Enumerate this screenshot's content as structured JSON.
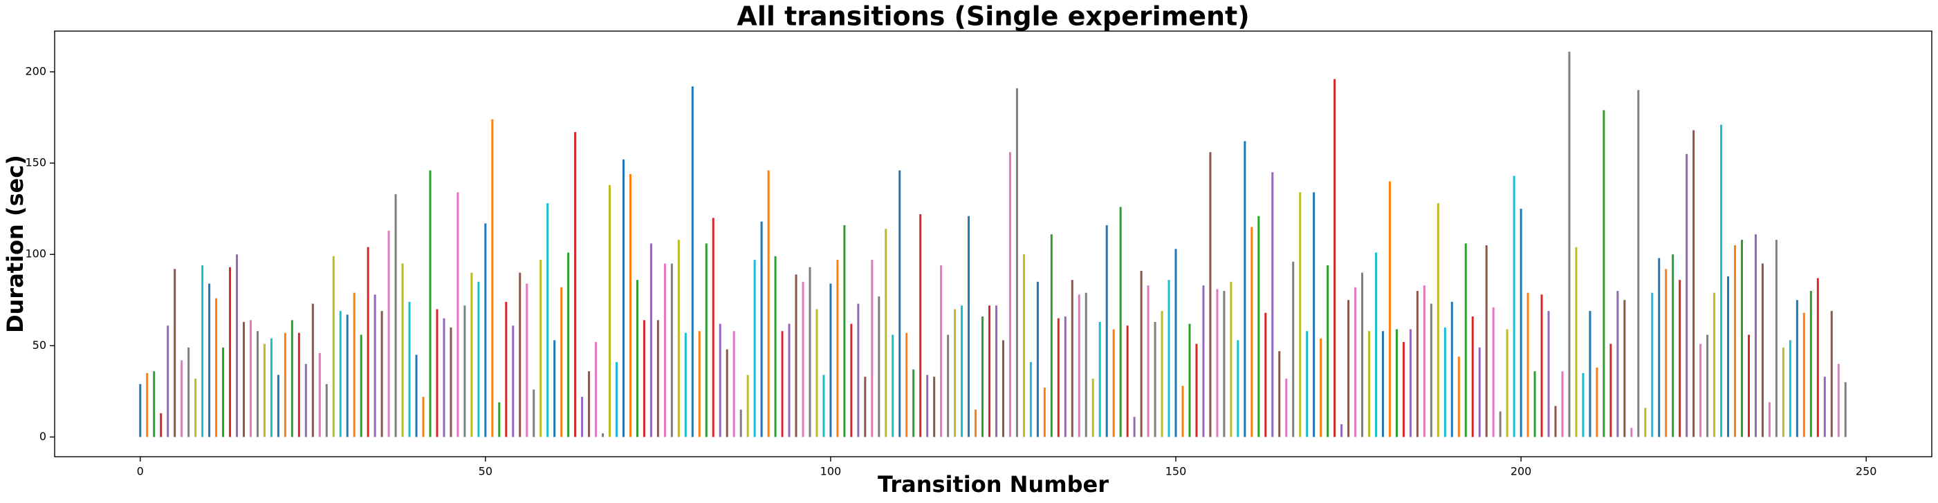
{
  "chart_data": {
    "type": "bar",
    "title": "All transitions (Single experiment)",
    "xlabel": "Transition Number",
    "ylabel": "Duration (sec)",
    "x": [
      0,
      1,
      2,
      3,
      4,
      5,
      6,
      7,
      8,
      9,
      10,
      11,
      12,
      13,
      14,
      15,
      16,
      17,
      18,
      19,
      20,
      21,
      22,
      23,
      24,
      25,
      26,
      27,
      28,
      29,
      30,
      31,
      32,
      33,
      34,
      35,
      36,
      37,
      38,
      39,
      40,
      41,
      42,
      43,
      44,
      45,
      46,
      47,
      48,
      49,
      50,
      51,
      52,
      53,
      54,
      55,
      56,
      57,
      58,
      59,
      60,
      61,
      62,
      63,
      64,
      65,
      66,
      67,
      68,
      69,
      70,
      71,
      72,
      73,
      74,
      75,
      76,
      77,
      78,
      79,
      80,
      81,
      82,
      83,
      84,
      85,
      86,
      87,
      88,
      89,
      90,
      91,
      92,
      93,
      94,
      95,
      96,
      97,
      98,
      99,
      100,
      101,
      102,
      103,
      104,
      105,
      106,
      107,
      108,
      109,
      110,
      111,
      112,
      113,
      114,
      115,
      116,
      117,
      118,
      119,
      120,
      121,
      122,
      123,
      124,
      125,
      126,
      127,
      128,
      129,
      130,
      131,
      132,
      133,
      134,
      135,
      136,
      137,
      138,
      139,
      140,
      141,
      142,
      143,
      144,
      145,
      146,
      147,
      148,
      149,
      150,
      151,
      152,
      153,
      154,
      155,
      156,
      157,
      158,
      159,
      160,
      161,
      162,
      163,
      164,
      165,
      166,
      167,
      168,
      169,
      170,
      171,
      172,
      173,
      174,
      175,
      176,
      177,
      178,
      179,
      180,
      181,
      182,
      183,
      184,
      185,
      186,
      187,
      188,
      189,
      190,
      191,
      192,
      193,
      194,
      195,
      196,
      197,
      198,
      199,
      200,
      201,
      202,
      203,
      204,
      205,
      206,
      207,
      208,
      209,
      210,
      211,
      212,
      213,
      214,
      215,
      216,
      217,
      218,
      219,
      220,
      221,
      222,
      223,
      224,
      225,
      226,
      227,
      228,
      229,
      230,
      231,
      232,
      233,
      234,
      235,
      236,
      237,
      238,
      239,
      240,
      241,
      242,
      243,
      244,
      245,
      246,
      247
    ],
    "values": [
      29,
      35,
      36,
      13,
      61,
      92,
      42,
      49,
      32,
      94,
      84,
      76,
      49,
      93,
      100,
      63,
      64,
      58,
      51,
      54,
      34,
      57,
      64,
      57,
      40,
      73,
      46,
      29,
      99,
      69,
      67,
      79,
      56,
      104,
      78,
      69,
      113,
      133,
      95,
      74,
      45,
      22,
      146,
      70,
      65,
      60,
      134,
      72,
      90,
      85,
      117,
      174,
      19,
      74,
      61,
      90,
      84,
      26,
      97,
      128,
      53,
      82,
      101,
      167,
      22,
      36,
      52,
      2,
      138,
      41,
      152,
      144,
      86,
      64,
      106,
      64,
      95,
      95,
      108,
      57,
      192,
      58,
      106,
      120,
      62,
      48,
      58,
      15,
      34,
      97,
      118,
      146,
      99,
      58,
      62,
      89,
      85,
      93,
      70,
      34,
      84,
      97,
      116,
      62,
      73,
      33,
      97,
      77,
      114,
      56,
      146,
      57,
      37,
      122,
      34,
      33,
      94,
      56,
      70,
      72,
      121,
      15,
      66,
      72,
      72,
      53,
      156,
      191,
      100,
      41,
      85,
      27,
      111,
      65,
      66,
      86,
      78,
      79,
      32,
      63,
      116,
      59,
      126,
      61,
      11,
      91,
      83,
      63,
      69,
      86,
      103,
      28,
      62,
      51,
      83,
      156,
      81,
      80,
      85,
      53,
      162,
      115,
      121,
      68,
      145,
      47,
      32,
      96,
      134,
      58,
      134,
      54,
      94,
      196,
      7,
      75,
      82,
      90,
      58,
      101,
      58,
      140,
      59,
      52,
      59,
      80,
      83,
      73,
      128,
      60,
      74,
      44,
      106,
      66,
      49,
      105,
      71,
      14,
      59,
      143,
      125,
      79,
      36,
      78,
      69,
      17,
      36,
      211,
      104,
      35,
      69,
      38,
      179,
      51,
      80,
      75,
      5,
      190,
      16,
      79,
      98,
      92,
      100,
      86,
      155,
      168,
      51,
      56,
      79,
      171,
      88,
      105,
      108,
      56,
      111,
      95,
      19,
      108,
      49,
      53,
      75,
      68,
      80,
      87,
      33,
      69,
      40,
      30
    ],
    "colors": [
      "#1f77b4",
      "#ff7f0e",
      "#2ca02c",
      "#d62728",
      "#9467bd",
      "#8c564b",
      "#e377c2",
      "#7f7f7f",
      "#bcbd22",
      "#17becf"
    ],
    "xlim": [
      -12.4,
      259.5
    ],
    "xticks": [
      0,
      50,
      100,
      150,
      200,
      250
    ],
    "ylim": [
      -10.8,
      222.3
    ],
    "yticks": [
      0,
      50,
      100,
      150,
      200
    ],
    "grid": false
  }
}
